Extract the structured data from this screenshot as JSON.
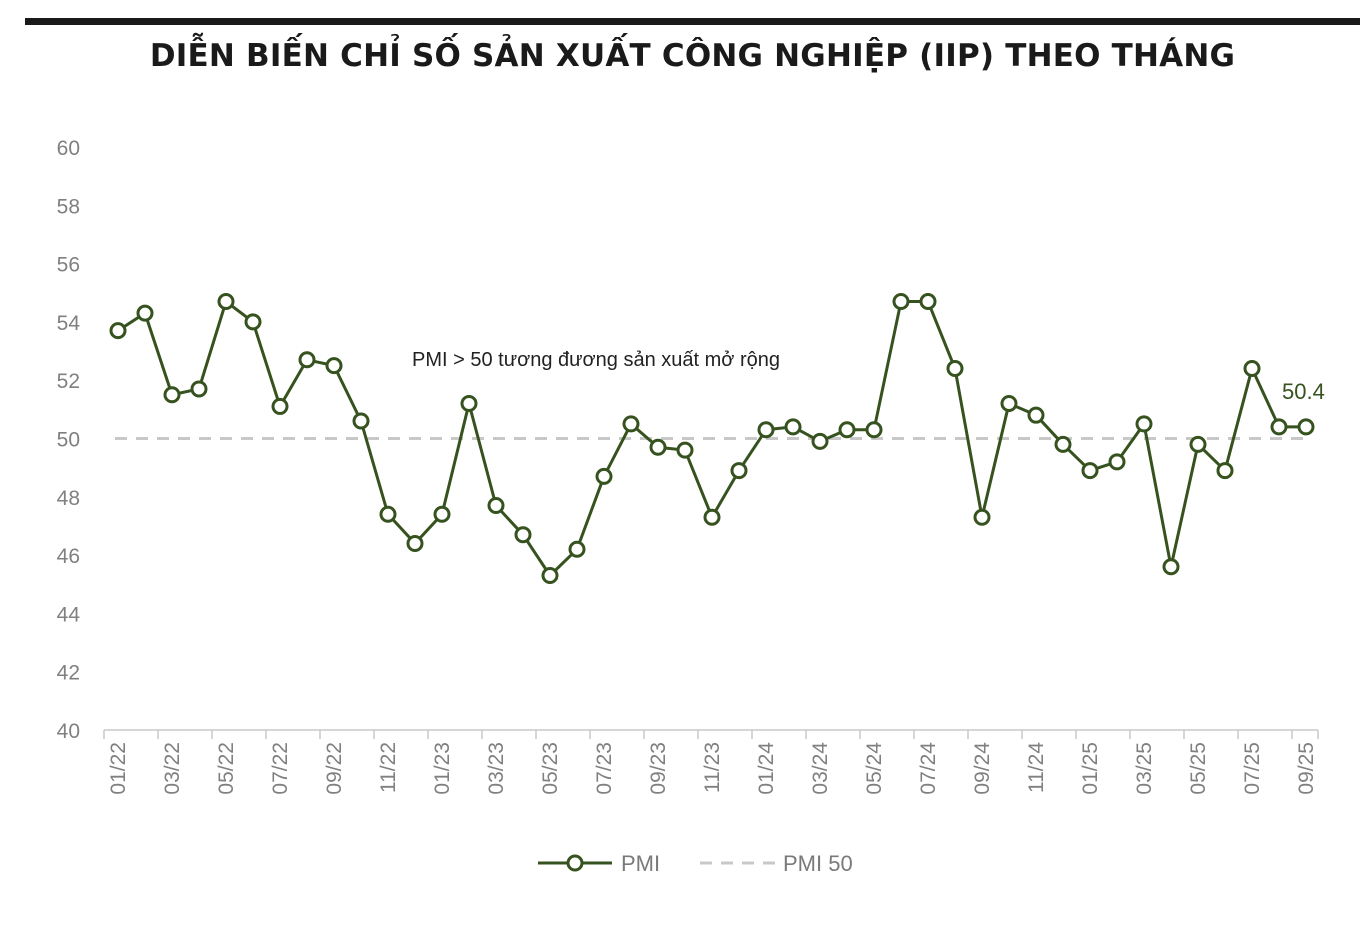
{
  "title": "DIỄN BIẾN CHỈ SỐ SẢN XUẤT CÔNG NGHIỆP (IIP) THEO THÁNG",
  "colors": {
    "series": "#35521f",
    "reference": "#c8c8c8",
    "axis": "#c8c8c8",
    "text": "#808080"
  },
  "chart_data": {
    "type": "line",
    "title": "DIỄN BIẾN CHỈ SỐ SẢN XUẤT CÔNG NGHIỆP (IIP) THEO THÁNG",
    "xlabel": "",
    "ylabel": "",
    "ylim": [
      40,
      60
    ],
    "yticks": [
      40,
      42,
      44,
      46,
      48,
      50,
      52,
      54,
      56,
      58,
      60
    ],
    "grid": false,
    "legend_position": "bottom",
    "x": [
      "01/22",
      "02/22",
      "03/22",
      "04/22",
      "05/22",
      "06/22",
      "07/22",
      "08/22",
      "09/22",
      "10/22",
      "11/22",
      "12/22",
      "01/23",
      "02/23",
      "03/23",
      "04/23",
      "05/23",
      "06/23",
      "07/23",
      "08/23",
      "09/23",
      "10/23",
      "11/23",
      "12/23",
      "01/24",
      "02/24",
      "03/24",
      "04/24",
      "05/24",
      "06/24",
      "07/24",
      "08/24",
      "09/24",
      "10/24",
      "11/24",
      "12/24",
      "01/25",
      "02/25",
      "03/25",
      "04/25",
      "05/25",
      "06/25",
      "07/25",
      "08/25",
      "09/25"
    ],
    "xtick_labels": [
      "01/22",
      "03/22",
      "05/22",
      "07/22",
      "09/22",
      "11/22",
      "01/23",
      "03/23",
      "05/23",
      "07/23",
      "09/23",
      "11/23",
      "01/24",
      "03/24",
      "05/24",
      "07/24",
      "09/24",
      "11/24",
      "01/25",
      "03/25",
      "05/25",
      "07/25",
      "09/25"
    ],
    "series": [
      {
        "name": "PMI",
        "values": [
          53.7,
          54.3,
          51.5,
          51.7,
          54.7,
          54.0,
          51.1,
          52.7,
          52.5,
          50.6,
          47.4,
          46.4,
          47.4,
          51.2,
          47.7,
          46.7,
          45.3,
          46.2,
          48.7,
          50.5,
          49.7,
          49.6,
          47.3,
          48.9,
          50.3,
          50.4,
          49.9,
          50.3,
          50.3,
          54.7,
          54.7,
          52.4,
          47.3,
          51.2,
          50.8,
          49.8,
          48.9,
          49.2,
          50.5,
          45.6,
          49.8,
          48.9,
          52.4,
          50.4,
          50.4
        ]
      },
      {
        "name": "PMI 50",
        "style": "dashed",
        "constant": 50
      }
    ],
    "annotations": [
      {
        "text": "PMI > 50 tương đương sản xuất mở rộng"
      },
      {
        "text": "50.4",
        "point": "09/25"
      }
    ]
  }
}
